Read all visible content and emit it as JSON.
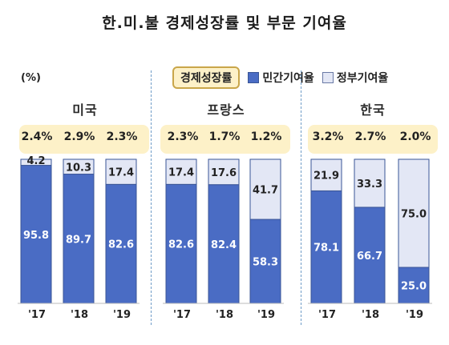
{
  "title": "한.미.불 경제성장률 및 부문 기여율",
  "unit": "(%)",
  "legend": {
    "growth": "경제성장률",
    "private": "민간기여율",
    "government": "정부기여율"
  },
  "colors": {
    "private": "#4a6cc4",
    "government": "#e3e7f5",
    "growth_box": "#fdf1c8"
  },
  "chart_data": {
    "type": "bar",
    "stacked": true,
    "title": "한.미.불 경제성장률 및 부문 기여율",
    "ylabel": "(%)",
    "ylim": [
      0,
      100
    ],
    "categories": [
      "'17",
      "'18",
      "'19"
    ],
    "groups": [
      {
        "country": "미국",
        "growth": [
          "2.4%",
          "2.9%",
          "2.3%"
        ],
        "series": [
          {
            "name": "민간기여율",
            "values": [
              95.8,
              89.7,
              82.6
            ]
          },
          {
            "name": "정부기여율",
            "values": [
              4.2,
              10.3,
              17.4
            ]
          }
        ]
      },
      {
        "country": "프랑스",
        "growth": [
          "2.3%",
          "1.7%",
          "1.2%"
        ],
        "series": [
          {
            "name": "민간기여율",
            "values": [
              82.6,
              82.4,
              58.3
            ]
          },
          {
            "name": "정부기여율",
            "values": [
              17.4,
              17.6,
              41.7
            ]
          }
        ]
      },
      {
        "country": "한국",
        "growth": [
          "3.2%",
          "2.7%",
          "2.0%"
        ],
        "series": [
          {
            "name": "민간기여율",
            "values": [
              78.1,
              66.7,
              25.0
            ]
          },
          {
            "name": "정부기여율",
            "values": [
              21.9,
              33.3,
              75.0
            ]
          }
        ]
      }
    ]
  }
}
